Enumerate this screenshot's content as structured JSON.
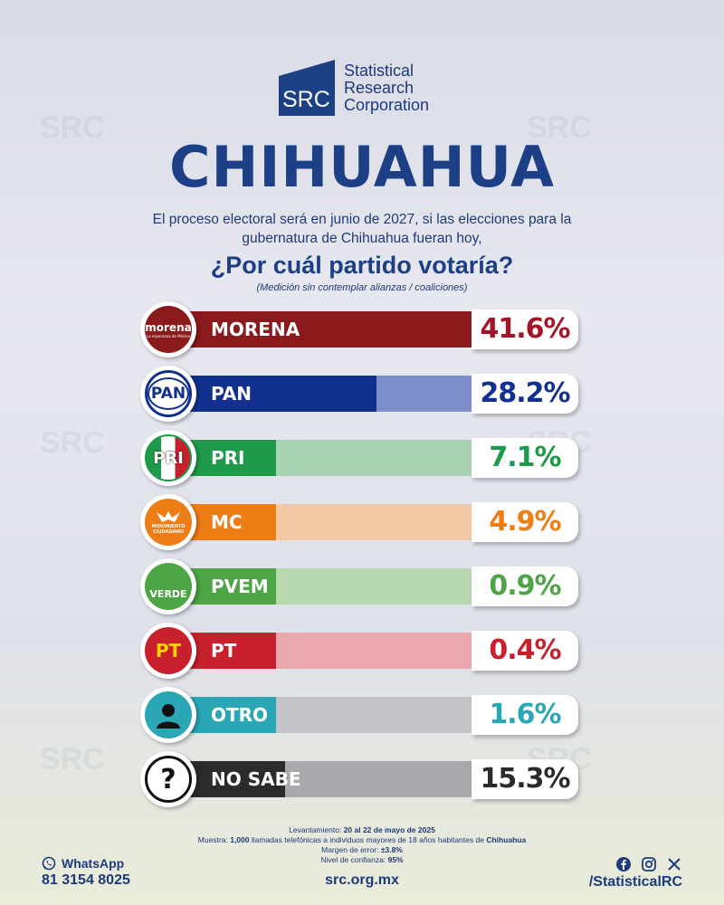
{
  "brand": {
    "logo_mark": "SRC",
    "logo_name_lines": [
      "Statistical",
      "Research",
      "Corporation"
    ]
  },
  "header": {
    "title": "CHIHUAHUA",
    "intro": "El proceso electoral será en junio de 2027, si las elecciones para la gubernatura de Chihuahua fueran hoy,",
    "question": "¿Por cuál partido votaría?",
    "note": "(Medición sin contemplar alianzas / coaliciones)"
  },
  "chart_data": {
    "type": "bar",
    "categories": [
      "MORENA",
      "PAN",
      "PRI",
      "MC",
      "PVEM",
      "PT",
      "OTRO",
      "NO SABE"
    ],
    "values": [
      41.6,
      28.2,
      7.1,
      4.9,
      0.9,
      0.4,
      1.6,
      15.3
    ],
    "value_labels": [
      "41.6%",
      "28.2%",
      "7.1%",
      "4.9%",
      "0.9%",
      "0.4%",
      "1.6%",
      "15.3%"
    ],
    "colors": [
      "#8b1a1d",
      "#12318e",
      "#1f9a4a",
      "#ef7d16",
      "#4ea546",
      "#c8202c",
      "#2aa6b4",
      "#2b2b2b"
    ],
    "bg_colors": [
      "#d89ea3",
      "#7d8fc8",
      "#a7d3b2",
      "#f2c9a4",
      "#b7d9b0",
      "#eaa7ae",
      "#c4c4c8",
      "#a9a9ad"
    ],
    "value_colors": [
      "#a3162a",
      "#12318e",
      "#1f9a4a",
      "#ef7d16",
      "#4ea546",
      "#c8202c",
      "#2aa6b4",
      "#2b2b2b"
    ],
    "icons": [
      "morena-logo",
      "pan-logo",
      "pri-logo",
      "mc-logo",
      "verde-logo",
      "pt-logo",
      "person-icon",
      "question-icon"
    ],
    "icon_texts": [
      "morena",
      "PAN",
      "PRI",
      "",
      "VERDE",
      "PT",
      "",
      "?"
    ],
    "morena_tagline": "La esperanza de México",
    "mc_text_lines": [
      "MOVIMIENTO",
      "CIUDADANO"
    ]
  },
  "footer": {
    "levantamiento_label": "Levantamiento:",
    "levantamiento_value": "20 al 22 de mayo de 2025",
    "muestra_label": "Muestra:",
    "muestra_count": "1,000",
    "muestra_text": "llamadas telefónicas a individuos mayores de 18 años habitantes de",
    "muestra_place": "Chihuahua",
    "margen_label": "Margen de error:",
    "margen_value": "±3.8%",
    "confianza_label": "Nivel de confianza:",
    "confianza_value": "95%",
    "website": "src.org.mx",
    "whatsapp_label": "WhatsApp",
    "whatsapp_number": "81 3154 8025",
    "social_handle": "/StatisticalRC"
  }
}
